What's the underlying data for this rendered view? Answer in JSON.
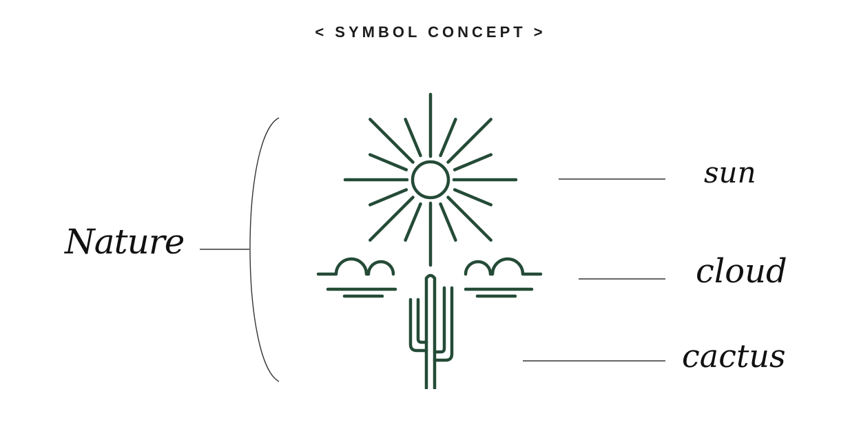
{
  "header": {
    "title": "< SYMBOL CONCEPT >"
  },
  "labels": {
    "group": "Nature",
    "sun": "sun",
    "cloud": "cloud",
    "cactus": "cactus"
  },
  "colors": {
    "symbol_green": "#244b37",
    "text": "#1c1c1c",
    "background": "#ffffff"
  },
  "symbols": [
    "sun-icon",
    "cloud-icon",
    "cactus-icon"
  ]
}
